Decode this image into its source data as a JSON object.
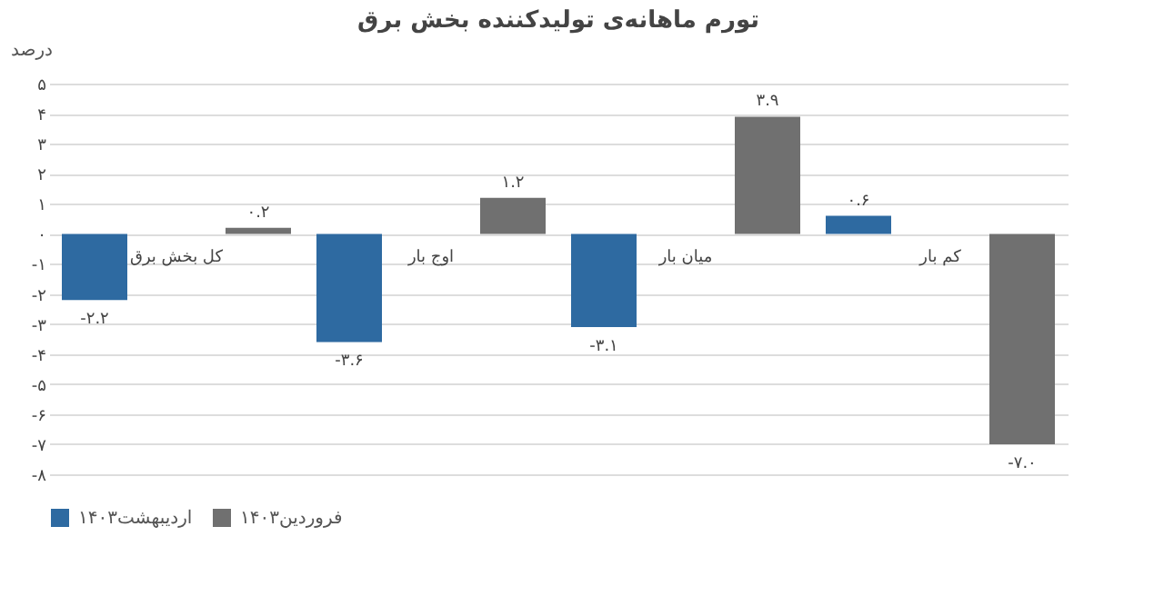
{
  "chart_data": {
    "type": "bar",
    "title": "تورم ماهانه‌ی تولیدکننده بخش برق",
    "ylabel": "درصد",
    "categories": [
      "کل بخش برق",
      "اوج بار",
      "میان بار",
      "کم بار"
    ],
    "series": [
      {
        "name": "اردیبهشت۱۴۰۳",
        "color": "#2e6aa1",
        "values": [
          -2.2,
          -3.6,
          -3.1,
          0.6
        ],
        "value_labels": [
          "-۲.۲",
          "-۳.۶",
          "-۳.۱",
          "۰.۶"
        ]
      },
      {
        "name": "فروردین۱۴۰۳",
        "color": "#707070",
        "values": [
          0.2,
          1.2,
          3.9,
          -7.0
        ],
        "value_labels": [
          "۰.۲",
          "۱.۲",
          "۳.۹",
          "-۷.۰"
        ]
      }
    ],
    "ylim": [
      -8,
      5
    ],
    "yticks": [
      {
        "value": 5,
        "label": "۵"
      },
      {
        "value": 4,
        "label": "۴"
      },
      {
        "value": 3,
        "label": "۳"
      },
      {
        "value": 2,
        "label": "۲"
      },
      {
        "value": 1,
        "label": "۱"
      },
      {
        "value": 0,
        "label": "۰"
      },
      {
        "value": -1,
        "label": "-۱"
      },
      {
        "value": -2,
        "label": "-۲"
      },
      {
        "value": -3,
        "label": "-۳"
      },
      {
        "value": -4,
        "label": "-۴"
      },
      {
        "value": -5,
        "label": "-۵"
      },
      {
        "value": -6,
        "label": "-۶"
      },
      {
        "value": -7,
        "label": "-۷"
      },
      {
        "value": -8,
        "label": "-۸"
      }
    ],
    "grid": "y",
    "legend": "bottom"
  }
}
